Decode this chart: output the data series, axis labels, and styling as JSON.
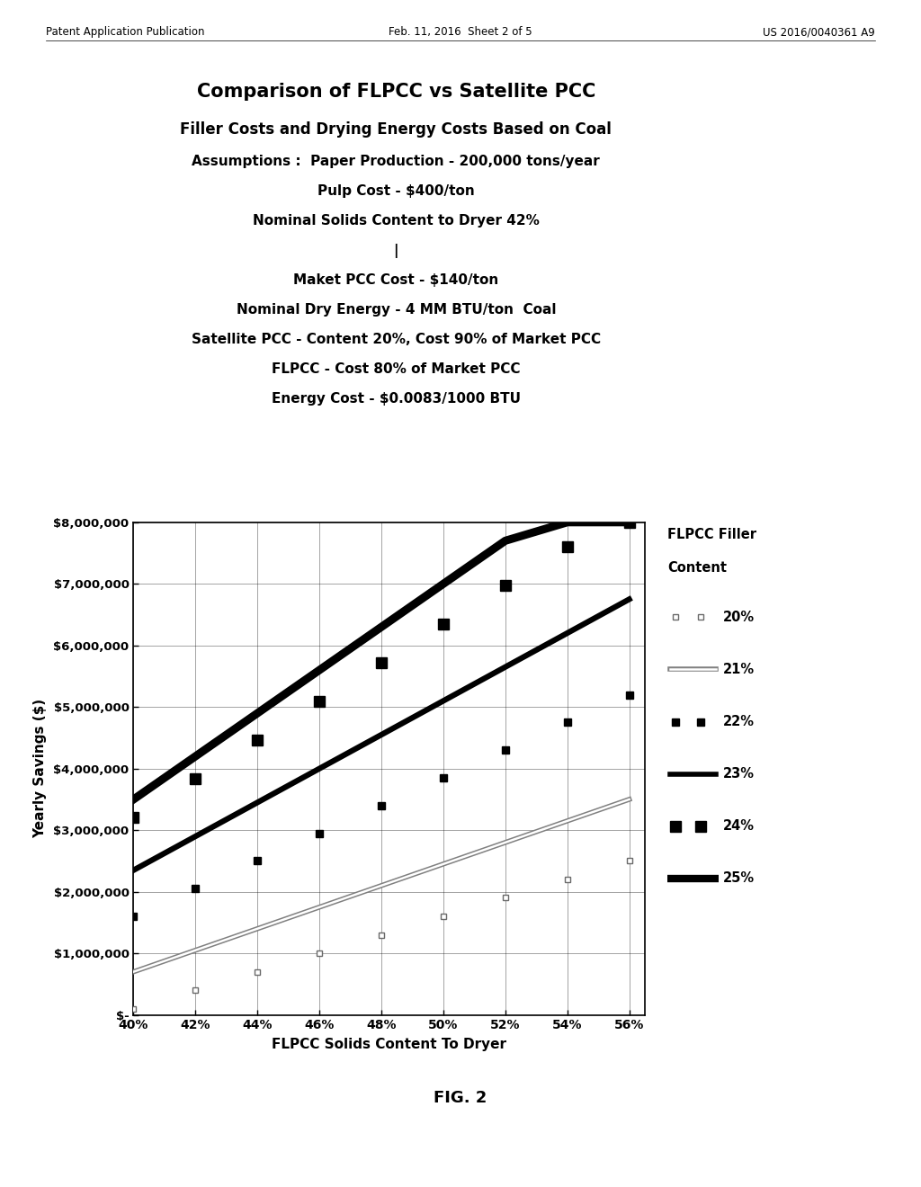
{
  "title_line1": "Comparison of FLPCC vs Satellite PCC",
  "title_line2": "Filler Costs and Drying Energy Costs Based on Coal",
  "subtitle_lines": [
    "Assumptions :  Paper Production - 200,000 tons/year",
    "Pulp Cost - $400/ton",
    "Nominal Solids Content to Dryer 42%",
    "|",
    "Maket PCC Cost - $140/ton",
    "Nominal Dry Energy - 4 MM BTU/ton  Coal",
    "Satellite PCC - Content 20%, Cost 90% of Market PCC",
    "FLPCC - Cost 80% of Market PCC",
    "Energy Cost - $0.0083/1000 BTU"
  ],
  "xlabel": "FLPCC Solids Content To Dryer",
  "ylabel": "Yearly Savings ($)",
  "x_ticks": [
    0.4,
    0.42,
    0.44,
    0.46,
    0.48,
    0.5,
    0.52,
    0.54,
    0.56
  ],
  "x_tick_labels": [
    "40%",
    "42%",
    "44%",
    "46%",
    "48%",
    "50%",
    "52%",
    "54%",
    "56%"
  ],
  "y_ticks": [
    0,
    1000000,
    2000000,
    3000000,
    4000000,
    5000000,
    6000000,
    7000000,
    8000000
  ],
  "y_tick_labels": [
    "$-",
    "$1,000,000",
    "$2,000,000",
    "$3,000,000",
    "$4,000,000",
    "$5,000,000",
    "$6,000,000",
    "$7,000,000",
    "$8,000,000"
  ],
  "xlim": [
    0.4,
    0.565
  ],
  "ylim": [
    0,
    8000000
  ],
  "fig_caption": "FIG. 2",
  "header_left": "Patent Application Publication",
  "header_center": "Feb. 11, 2016  Sheet 2 of 5",
  "header_right": "US 2016/0040361 A9",
  "lines": [
    {
      "label": "20%",
      "style": "open_squares",
      "color": "gray",
      "lw": 1.0,
      "x": [
        0.4,
        0.42,
        0.44,
        0.46,
        0.48,
        0.5,
        0.52,
        0.54,
        0.56
      ],
      "y": [
        100000,
        400000,
        700000,
        1000000,
        1300000,
        1600000,
        1900000,
        2200000,
        2500000
      ]
    },
    {
      "label": "21%",
      "style": "thin_double",
      "color": "gray",
      "lw": 2.0,
      "x": [
        0.4,
        0.42,
        0.44,
        0.46,
        0.48,
        0.5,
        0.52,
        0.54,
        0.56
      ],
      "y": [
        700000,
        1050000,
        1400000,
        1750000,
        2100000,
        2450000,
        2800000,
        3150000,
        3500000
      ]
    },
    {
      "label": "22%",
      "style": "filled_squares_small",
      "color": "black",
      "lw": 1.5,
      "x": [
        0.4,
        0.42,
        0.44,
        0.46,
        0.48,
        0.5,
        0.52,
        0.54,
        0.56
      ],
      "y": [
        1600000,
        2050000,
        2500000,
        2950000,
        3400000,
        3850000,
        4300000,
        4750000,
        5200000
      ]
    },
    {
      "label": "23%",
      "style": "thick_solid",
      "color": "black",
      "lw": 4.5,
      "x": [
        0.4,
        0.42,
        0.44,
        0.46,
        0.48,
        0.5,
        0.52,
        0.54,
        0.56
      ],
      "y": [
        2350000,
        2900000,
        3450000,
        4000000,
        4550000,
        5100000,
        5650000,
        6200000,
        6750000
      ]
    },
    {
      "label": "24%",
      "style": "filled_squares_large",
      "color": "black",
      "lw": 1.5,
      "x": [
        0.4,
        0.42,
        0.44,
        0.46,
        0.48,
        0.5,
        0.52,
        0.54,
        0.56
      ],
      "y": [
        3200000,
        3830000,
        4460000,
        5090000,
        5720000,
        6350000,
        6980000,
        7610000,
        8000000
      ]
    },
    {
      "label": "25%",
      "style": "thickest_solid",
      "color": "black",
      "lw": 6.0,
      "x": [
        0.4,
        0.42,
        0.44,
        0.46,
        0.48,
        0.5,
        0.52,
        0.54,
        0.56
      ],
      "y": [
        3500000,
        4200000,
        4900000,
        5600000,
        6300000,
        7000000,
        7700000,
        8000000,
        8000000
      ]
    }
  ]
}
